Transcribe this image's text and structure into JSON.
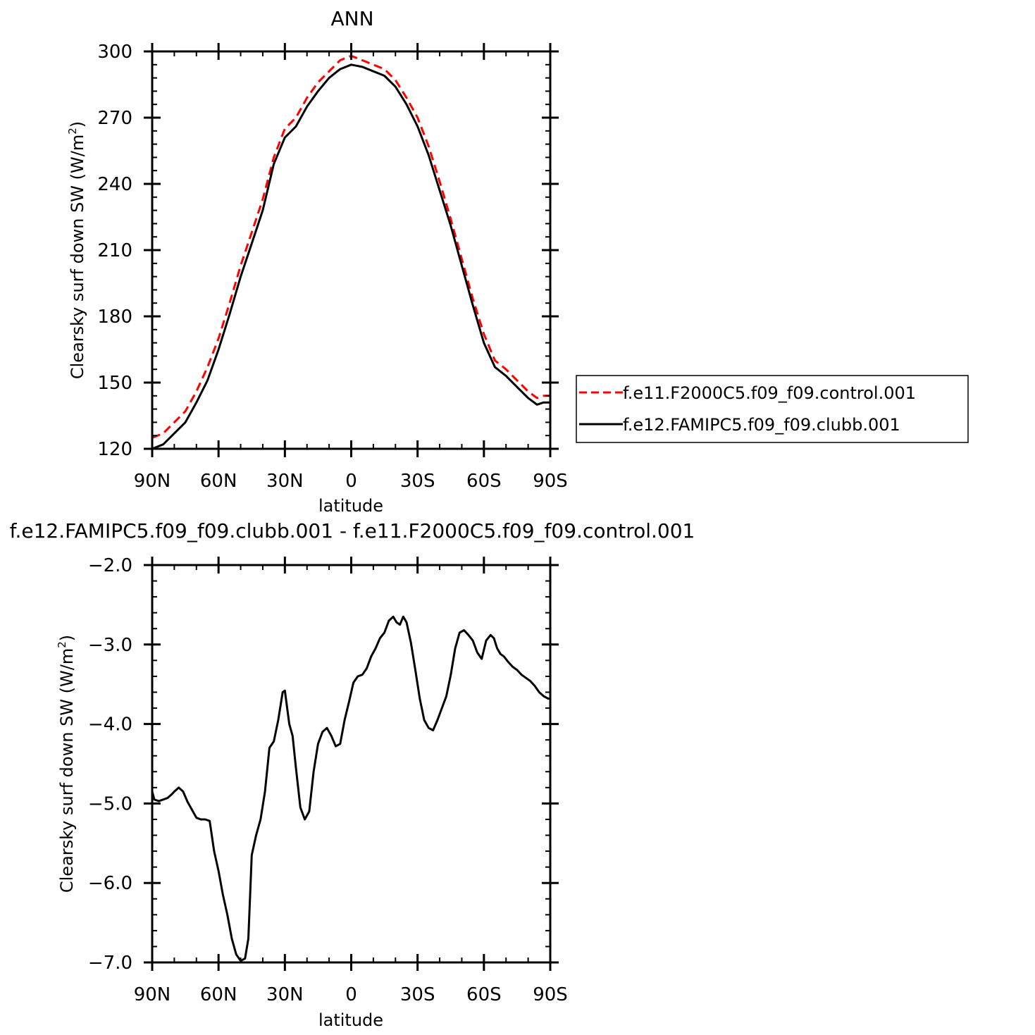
{
  "chart_data": [
    {
      "type": "line",
      "title": "ANN",
      "xlabel": "latitude",
      "ylabel": "Clearsky surf down SW (W/m",
      "ylabel_sup": "2",
      "ylabel_close": ")",
      "xlim": [
        90,
        -90
      ],
      "ylim": [
        120,
        300
      ],
      "xticks": [
        90,
        60,
        30,
        0,
        -30,
        -60,
        -90
      ],
      "xticklabels": [
        "90N",
        "60N",
        "30N",
        "0",
        "30S",
        "60S",
        "90S"
      ],
      "yticks": [
        120,
        150,
        180,
        210,
        240,
        270,
        300
      ],
      "yticklabels": [
        "120",
        "150",
        "180",
        "210",
        "240",
        "270",
        "300"
      ],
      "legend_position": "right",
      "series": [
        {
          "name": "f.e11.F2000C5.f09_f09.control.001",
          "color": "#ff0000",
          "dash": "dashed",
          "x": [
            90,
            85,
            80,
            75,
            70,
            65,
            60,
            55,
            50,
            45,
            40,
            35,
            30,
            25,
            20,
            15,
            10,
            5,
            0,
            -5,
            -10,
            -15,
            -20,
            -25,
            -30,
            -35,
            -40,
            -45,
            -50,
            -55,
            -60,
            -65,
            -70,
            -75,
            -80,
            -84,
            -87,
            -90
          ],
          "y": [
            125,
            127,
            132,
            137,
            146,
            157,
            170,
            186,
            203,
            218,
            233,
            252,
            265,
            270,
            279,
            286,
            291,
            296,
            298,
            296,
            294,
            292,
            287,
            279,
            270,
            257,
            241,
            224,
            206,
            188,
            172,
            160,
            156,
            151,
            146,
            143,
            144,
            144
          ]
        },
        {
          "name": "f.e12.FAMIPC5.f09_f09.clubb.001",
          "color": "#000000",
          "dash": "solid",
          "x": [
            90,
            85,
            80,
            75,
            70,
            65,
            60,
            55,
            50,
            45,
            40,
            35,
            30,
            25,
            20,
            15,
            10,
            5,
            0,
            -5,
            -10,
            -15,
            -20,
            -25,
            -30,
            -35,
            -40,
            -45,
            -50,
            -55,
            -60,
            -65,
            -70,
            -75,
            -80,
            -84,
            -87,
            -90
          ],
          "y": [
            120,
            122,
            127,
            132,
            141,
            151,
            165,
            181,
            198,
            213,
            228,
            249,
            261,
            266,
            275,
            282,
            288,
            292,
            294,
            293,
            291,
            289,
            284,
            276,
            266,
            253,
            237,
            221,
            203,
            185,
            168,
            157,
            153,
            148,
            143,
            140,
            141,
            141
          ]
        }
      ]
    },
    {
      "type": "line",
      "title": "f.e12.FAMIPC5.f09_f09.clubb.001  -  f.e11.F2000C5.f09_f09.control.001",
      "xlabel": "latitude",
      "ylabel": "Clearsky surf down SW (W/m",
      "ylabel_sup": "2",
      "ylabel_close": ")",
      "xlim": [
        90,
        -90
      ],
      "ylim": [
        -7.0,
        -2.0
      ],
      "xticks": [
        90,
        60,
        30,
        0,
        -30,
        -60,
        -90
      ],
      "xticklabels": [
        "90N",
        "60N",
        "30N",
        "0",
        "30S",
        "60S",
        "90S"
      ],
      "yticks": [
        -7.0,
        -6.0,
        -5.0,
        -4.0,
        -3.0,
        -2.0
      ],
      "yticklabels": [
        "−7.0",
        "−6.0",
        "−5.0",
        "−4.0",
        "−3.0",
        "−2.0"
      ],
      "series": [
        {
          "color": "#000000",
          "dash": "solid",
          "x": [
            90,
            89,
            87,
            85,
            83,
            81,
            80,
            78,
            76,
            74,
            72,
            70,
            68,
            66,
            64,
            62,
            60,
            58,
            56,
            54,
            52,
            50,
            48,
            46.5,
            45,
            43,
            41,
            39,
            37,
            35,
            33,
            31,
            30,
            28,
            26.5,
            25,
            23,
            21,
            19,
            17,
            15,
            13,
            11,
            9,
            7,
            5,
            3,
            1,
            -1,
            -3,
            -5,
            -7,
            -9,
            -11,
            -13,
            -15,
            -17,
            -19,
            -20.5,
            -22,
            -23.5,
            -25,
            -27,
            -29,
            -31,
            -33,
            -35,
            -37,
            -39,
            -41,
            -43,
            -45,
            -47,
            -49,
            -51,
            -53,
            -55,
            -57,
            -59,
            -61,
            -63,
            -64.5,
            -66,
            -67.5,
            -69,
            -71,
            -73,
            -75,
            -77,
            -79,
            -81,
            -83,
            -85,
            -87,
            -89,
            -90
          ],
          "y": [
            -4.85,
            -4.95,
            -4.97,
            -4.95,
            -4.93,
            -4.88,
            -4.85,
            -4.8,
            -4.85,
            -4.98,
            -5.08,
            -5.18,
            -5.2,
            -5.2,
            -5.22,
            -5.6,
            -5.85,
            -6.15,
            -6.4,
            -6.7,
            -6.9,
            -6.98,
            -6.95,
            -6.7,
            -5.65,
            -5.4,
            -5.2,
            -4.85,
            -4.3,
            -4.22,
            -3.95,
            -3.6,
            -3.58,
            -4.0,
            -4.15,
            -4.55,
            -5.05,
            -5.2,
            -5.1,
            -4.6,
            -4.25,
            -4.1,
            -4.05,
            -4.15,
            -4.28,
            -4.25,
            -3.95,
            -3.72,
            -3.48,
            -3.4,
            -3.38,
            -3.3,
            -3.15,
            -3.05,
            -2.92,
            -2.85,
            -2.7,
            -2.65,
            -2.72,
            -2.75,
            -2.65,
            -2.72,
            -2.98,
            -3.32,
            -3.68,
            -3.95,
            -4.05,
            -4.08,
            -3.95,
            -3.8,
            -3.65,
            -3.38,
            -3.05,
            -2.85,
            -2.82,
            -2.88,
            -2.95,
            -3.1,
            -3.18,
            -2.95,
            -2.88,
            -2.92,
            -3.05,
            -3.12,
            -3.15,
            -3.22,
            -3.28,
            -3.32,
            -3.38,
            -3.42,
            -3.46,
            -3.52,
            -3.6,
            -3.65,
            -3.68,
            -3.68
          ]
        }
      ]
    }
  ]
}
